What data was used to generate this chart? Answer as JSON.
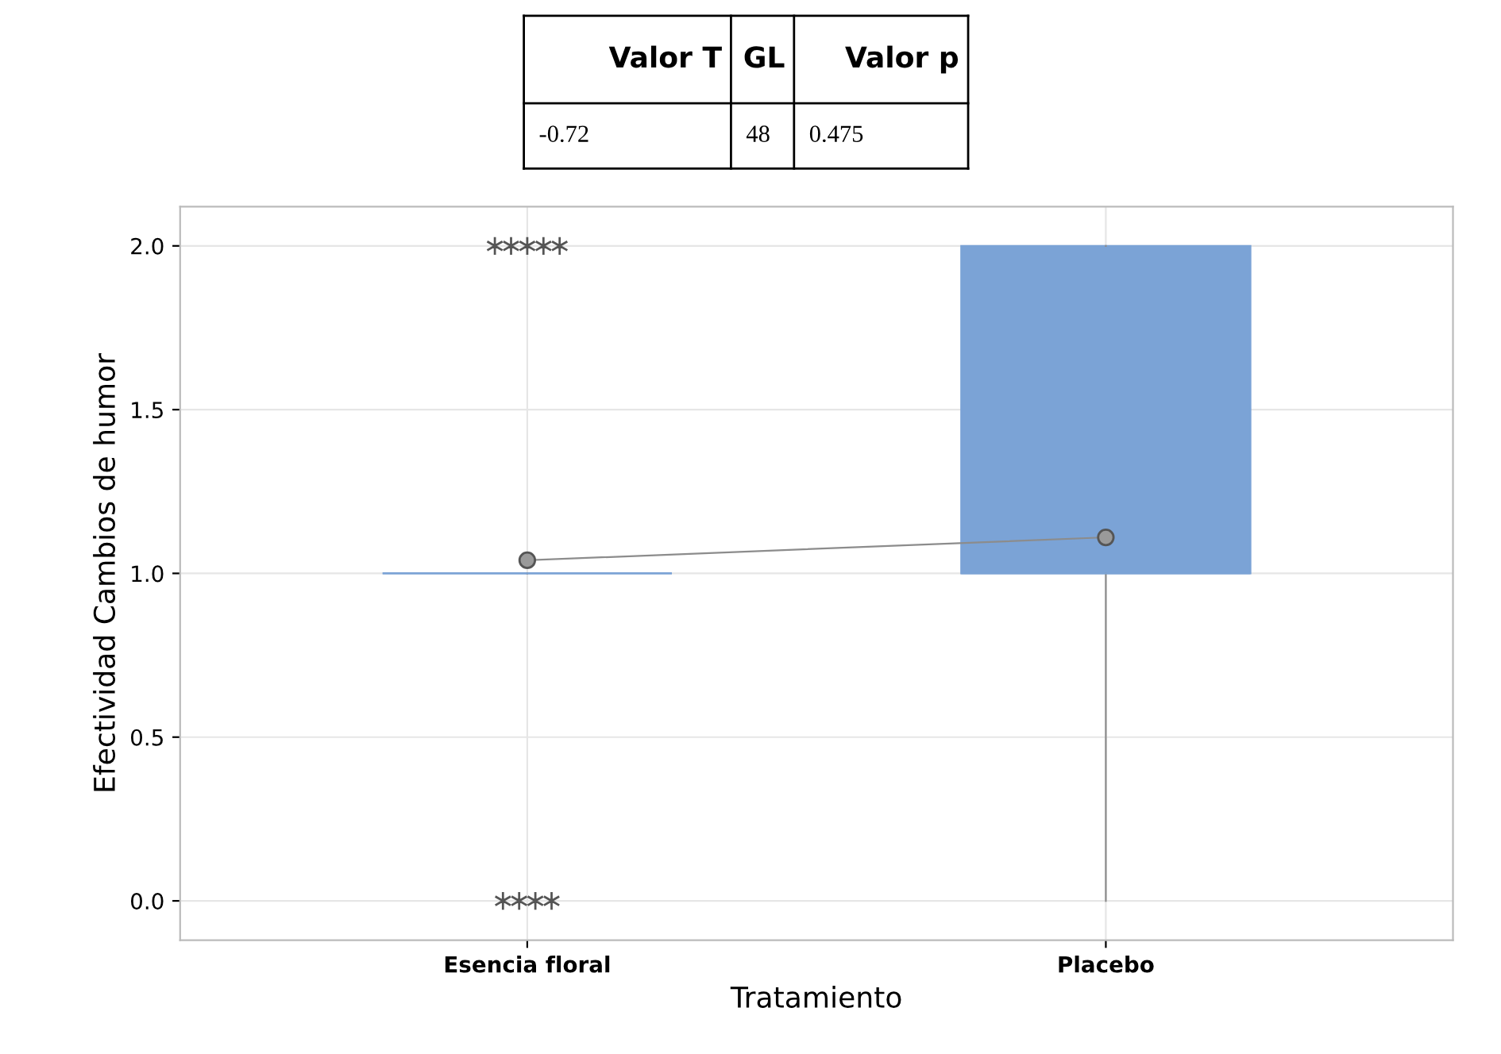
{
  "chart_data": {
    "type": "box",
    "xlabel": "Tratamiento",
    "ylabel": "Efectividad Cambios de humor",
    "categories": [
      "Esencia floral",
      "Placebo"
    ],
    "series": [
      {
        "color": "#7ba3d6",
        "boxes": [
          {
            "low": 1,
            "q1": 1,
            "median": 1,
            "q3": 1,
            "high": 1,
            "outliers": [
              2,
              2,
              2,
              2,
              2,
              0,
              0,
              0,
              0
            ]
          },
          {
            "low": 0,
            "q1": 1,
            "median": 1,
            "q3": 2,
            "high": 2
          }
        ]
      },
      {
        "type": "line",
        "color": "#8c8c8c",
        "values": [
          1.04,
          1.11
        ],
        "marker": "circle"
      }
    ],
    "ylim": [
      -0.12,
      2.12
    ],
    "yticks": [
      {
        "value": 0,
        "label": "0.0"
      },
      {
        "value": 0.5,
        "label": "0.5"
      },
      {
        "value": 1,
        "label": "1.0"
      },
      {
        "value": 1.5,
        "label": "1.5"
      },
      {
        "value": 2,
        "label": "2.0"
      }
    ],
    "grid": true,
    "annotations": [
      "Valor T",
      "GL",
      "Valor p",
      "-0.72",
      "48",
      "0.475"
    ]
  }
}
